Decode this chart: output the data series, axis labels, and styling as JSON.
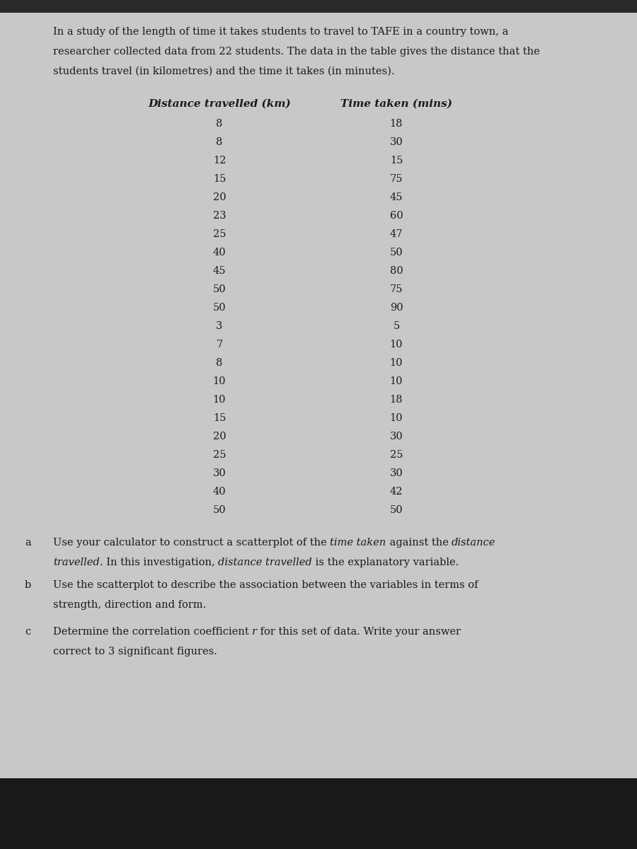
{
  "intro_line1": "In a study of the length of time it takes students to travel to TAFE in a country town, a",
  "intro_line2": "researcher collected data from 22 students. The data in the table gives the distance that the",
  "intro_line3": "students travel (in kilometres) and the time it takes (in minutes).",
  "col1_header": "Distance travelled (km)",
  "col2_header": "Time taken (mins)",
  "distance": [
    8,
    8,
    12,
    15,
    20,
    23,
    25,
    40,
    45,
    50,
    50,
    3,
    7,
    8,
    10,
    10,
    15,
    20,
    25,
    30,
    40,
    50
  ],
  "time": [
    18,
    30,
    15,
    75,
    45,
    60,
    47,
    50,
    80,
    75,
    90,
    5,
    10,
    10,
    10,
    18,
    10,
    30,
    25,
    30,
    42,
    50
  ],
  "qa_label": "a",
  "qa_line1_normal1": "Use your calculator to construct a scatterplot of the ",
  "qa_line1_italic1": "time taken",
  "qa_line1_normal2": " against the ",
  "qa_line1_italic2": "distance",
  "qa_line2_italic1": "travelled",
  "qa_line2_normal1": ". In this investigation, ",
  "qa_line2_italic2": "distance travelled",
  "qa_line2_normal2": " is the explanatory variable.",
  "qb_label": "b",
  "qb_line1": "Use the scatterplot to describe the association between the variables in terms of",
  "qb_line2": "strength, direction and form.",
  "qc_label": "c",
  "qc_line1_normal1": "Determine the correlation coefficient ",
  "qc_line1_italic1": "r",
  "qc_line1_normal2": " for this set of data. Write your answer",
  "qc_line2": "correct to 3 significant figures.",
  "bg_color": "#c8c8c8",
  "paper_color": "#e2e2e2",
  "text_color": "#1a1a1a",
  "top_bar_color": "#2a2a2a"
}
